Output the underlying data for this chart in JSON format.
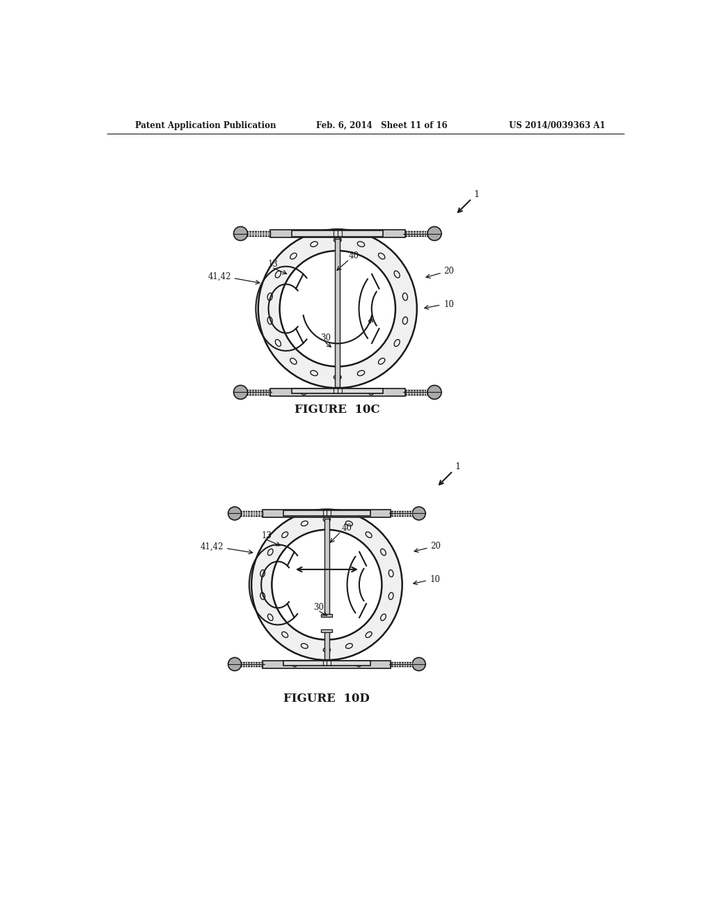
{
  "header_left": "Patent Application Publication",
  "header_mid": "Feb. 6, 2014   Sheet 11 of 16",
  "header_right": "US 2014/0039363 A1",
  "fig10c_label": "FIGURE  10C",
  "fig10d_label": "FIGURE  10D",
  "bg_color": "#ffffff",
  "line_color": "#1a1a1a"
}
